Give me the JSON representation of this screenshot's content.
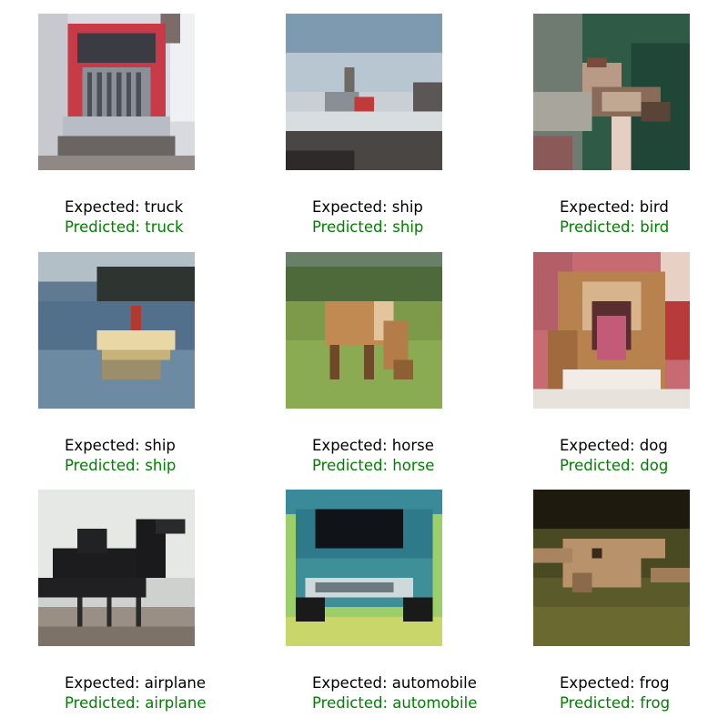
{
  "colors": {
    "expected_text": "#000000",
    "predicted_text": "#008000",
    "background": "#ffffff"
  },
  "samples": [
    {
      "expected": "Expected: truck",
      "predicted": "Predicted: truck"
    },
    {
      "expected": "Expected: ship",
      "predicted": "Predicted: ship"
    },
    {
      "expected": "Expected: bird",
      "predicted": "Predicted: bird"
    },
    {
      "expected": "Expected: ship",
      "predicted": "Predicted: ship"
    },
    {
      "expected": "Expected: horse",
      "predicted": "Predicted: horse"
    },
    {
      "expected": "Expected: dog",
      "predicted": "Predicted: dog"
    },
    {
      "expected": "Expected: airplane",
      "predicted": "Predicted: airplane"
    },
    {
      "expected": "Expected: automobile",
      "predicted": "Predicted: automobile"
    },
    {
      "expected": "Expected: frog",
      "predicted": "Predicted: frog"
    }
  ]
}
